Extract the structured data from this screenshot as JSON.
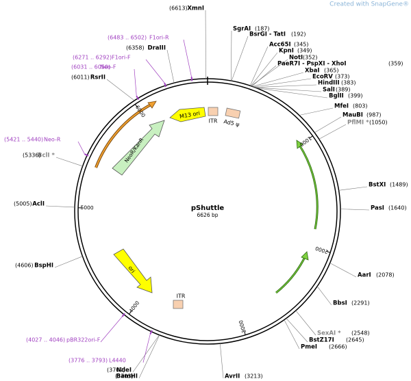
{
  "watermark": "Created with SnapGene®",
  "plasmid": {
    "name": "pShuttle",
    "size": "6626 bp"
  },
  "enzymes": [
    {
      "name": "XmnI",
      "pos": "(6613)"
    },
    {
      "name": "SgrAI",
      "pos": "(187)"
    },
    {
      "name": "BsrGI - TatI",
      "pos": "(192)"
    },
    {
      "name": "Acc65I",
      "pos": "(345)"
    },
    {
      "name": "KpnI",
      "pos": "(349)"
    },
    {
      "name": "NotI",
      "pos": "(352)"
    },
    {
      "name": "PaeR7I - PspXI - XhoI",
      "pos": "(359)"
    },
    {
      "name": "XbaI",
      "pos": "(365)"
    },
    {
      "name": "EcoRV",
      "pos": "(373)"
    },
    {
      "name": "HindIII",
      "pos": "(383)"
    },
    {
      "name": "SalI",
      "pos": "(389)"
    },
    {
      "name": "BglII",
      "pos": "(399)"
    },
    {
      "name": "MfeI",
      "pos": "(803)"
    },
    {
      "name": "MauBI",
      "pos": "(987)"
    },
    {
      "name": "PflMI *",
      "pos": "(1050)"
    },
    {
      "name": "BstXI",
      "pos": "(1489)"
    },
    {
      "name": "PasI",
      "pos": "(1640)"
    },
    {
      "name": "AarI",
      "pos": "(2078)"
    },
    {
      "name": "BbsI",
      "pos": "(2291)"
    },
    {
      "name": "SexAI *",
      "pos": "(2548)"
    },
    {
      "name": "BstZ17I",
      "pos": "(2645)"
    },
    {
      "name": "PmeI",
      "pos": "(2666)"
    },
    {
      "name": "AvrII",
      "pos": "(3213)"
    },
    {
      "name": "BamHI",
      "pos": "(3703)"
    },
    {
      "name": "NdeI",
      "pos": "(3709)"
    },
    {
      "name": "BspHI",
      "pos": "(4606)"
    },
    {
      "name": "AclI",
      "pos": "(5005)"
    },
    {
      "name": "BclI *",
      "pos": "(5336)"
    },
    {
      "name": "RsrII",
      "pos": "(6011)"
    },
    {
      "name": "DraIII",
      "pos": "(6358)"
    }
  ],
  "primers": [
    {
      "range": "(6483 .. 6502)",
      "name": "F1ori-R"
    },
    {
      "range": "(6271 .. 6292)",
      "name": "F1ori-F"
    },
    {
      "range": "(6031 .. 6050)",
      "name": "Neo-F"
    },
    {
      "range": "(5421 .. 5440)",
      "name": "Neo-R"
    },
    {
      "range": "(4027 .. 4046)",
      "name": "pBR322ori-F"
    },
    {
      "range": "(3776 .. 3793)",
      "name": "L4440"
    }
  ],
  "features": [
    "M13 ori",
    "ITR",
    "Ad5 ψ",
    "NeoR/KanR",
    "ori",
    "ITR"
  ],
  "ruler": [
    "1000",
    "2000",
    "3000",
    "4000",
    "5000",
    "6000"
  ]
}
